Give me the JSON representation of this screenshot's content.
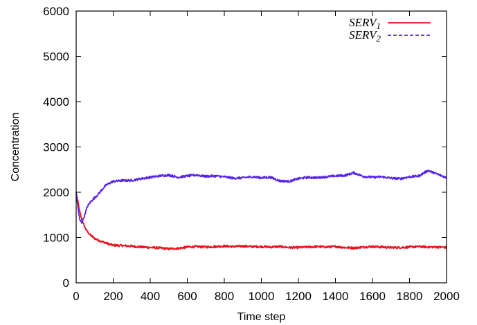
{
  "chart_data": {
    "type": "line",
    "title": "",
    "xlabel": "Time step",
    "ylabel": "Concentration",
    "xlim": [
      0,
      2000
    ],
    "ylim": [
      0,
      6000
    ],
    "xticks": [
      "0",
      "200",
      "400",
      "600",
      "800",
      "1000",
      "1200",
      "1400",
      "1600",
      "1800",
      "2000"
    ],
    "yticks": [
      "0",
      "1000",
      "2000",
      "3000",
      "4000",
      "5000",
      "6000"
    ],
    "grid": false,
    "legend_position": "top-right",
    "series": [
      {
        "name": "SERV",
        "subscript": "1",
        "color": "#e8141c",
        "style": "solid",
        "x": [
          0,
          10,
          20,
          30,
          40,
          50,
          60,
          80,
          100,
          120,
          140,
          160,
          180,
          200,
          250,
          300,
          350,
          400,
          450,
          500,
          550,
          600,
          650,
          700,
          750,
          800,
          850,
          900,
          950,
          1000,
          1050,
          1100,
          1150,
          1200,
          1250,
          1300,
          1350,
          1400,
          1450,
          1500,
          1550,
          1600,
          1650,
          1700,
          1750,
          1800,
          1850,
          1900,
          1950,
          2000
        ],
        "y": [
          2000,
          1780,
          1560,
          1400,
          1290,
          1200,
          1130,
          1040,
          980,
          940,
          910,
          880,
          850,
          830,
          820,
          810,
          790,
          780,
          770,
          750,
          760,
          790,
          800,
          790,
          800,
          810,
          800,
          810,
          800,
          800,
          790,
          800,
          780,
          780,
          790,
          800,
          790,
          800,
          780,
          770,
          790,
          800,
          790,
          780,
          780,
          790,
          800,
          790,
          790,
          780
        ]
      },
      {
        "name": "SERV",
        "subscript": "2",
        "color": "#5522ee",
        "style": "dashed",
        "x": [
          0,
          10,
          20,
          30,
          40,
          50,
          60,
          80,
          100,
          120,
          140,
          160,
          180,
          200,
          250,
          300,
          350,
          400,
          450,
          500,
          550,
          600,
          650,
          700,
          750,
          800,
          850,
          900,
          950,
          1000,
          1050,
          1100,
          1150,
          1200,
          1250,
          1300,
          1350,
          1400,
          1450,
          1500,
          1550,
          1600,
          1650,
          1700,
          1750,
          1800,
          1850,
          1900,
          1950,
          2000
        ],
        "y": [
          2000,
          1650,
          1380,
          1330,
          1420,
          1550,
          1680,
          1800,
          1880,
          1960,
          2060,
          2150,
          2200,
          2240,
          2260,
          2260,
          2300,
          2330,
          2360,
          2380,
          2330,
          2360,
          2380,
          2350,
          2360,
          2340,
          2310,
          2320,
          2340,
          2320,
          2330,
          2250,
          2240,
          2300,
          2330,
          2320,
          2340,
          2360,
          2370,
          2430,
          2350,
          2330,
          2340,
          2310,
          2300,
          2340,
          2360,
          2480,
          2400,
          2320
        ]
      }
    ]
  }
}
